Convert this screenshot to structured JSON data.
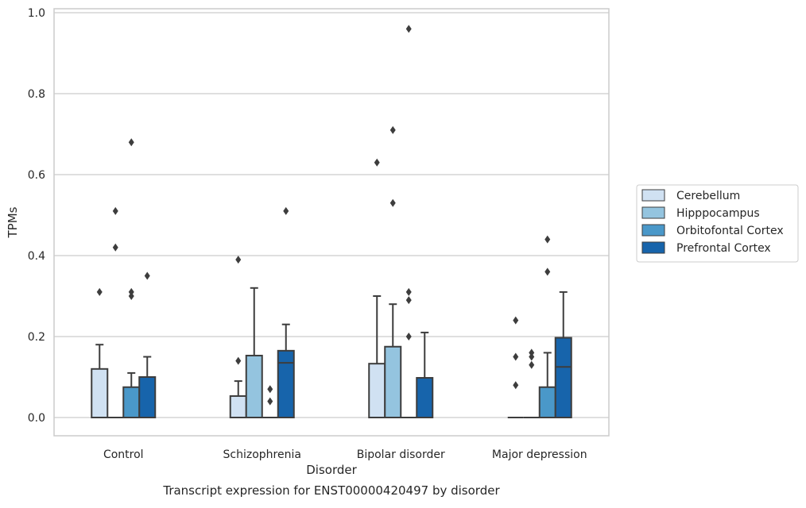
{
  "chart_data": {
    "type": "box",
    "xlabel": "Disorder",
    "ylabel": "TPMs",
    "caption": "Transcript expression for ENST00000420497 by disorder",
    "ylim": [
      -0.045,
      1.01
    ],
    "yticks": [
      "0.0",
      "0.2",
      "0.4",
      "0.6",
      "0.8",
      "1.0"
    ],
    "ytick_values": [
      0,
      0.2,
      0.4,
      0.6,
      0.8,
      1.0
    ],
    "grid": "horizontal",
    "legend_position": "right",
    "categories": [
      "Control",
      "Schizophrenia",
      "Bipolar disorder",
      "Major depression"
    ],
    "series": [
      {
        "name": "Cerebellum",
        "color": "#d0e1f2",
        "boxes": [
          {
            "q1": 0,
            "median": 0,
            "q3": 0.12,
            "whisker_low": 0,
            "whisker_high": 0.18,
            "outliers": [
              0.31
            ]
          },
          {
            "q1": 0,
            "median": 0,
            "q3": 0.053,
            "whisker_low": 0,
            "whisker_high": 0.09,
            "outliers": [
              0.14,
              0.39
            ]
          },
          {
            "q1": 0,
            "median": 0,
            "q3": 0.133,
            "whisker_low": 0,
            "whisker_high": 0.3,
            "outliers": [
              0.63
            ]
          },
          {
            "q1": 0,
            "median": 0,
            "q3": 0,
            "whisker_low": 0,
            "whisker_high": 0,
            "outliers": [
              0.08,
              0.15,
              0.24
            ]
          }
        ]
      },
      {
        "name": "Hipppocampus",
        "color": "#94c4df",
        "boxes": [
          {
            "q1": 0,
            "median": 0,
            "q3": 0,
            "whisker_low": 0,
            "whisker_high": 0,
            "outliers": [
              0.42,
              0.51
            ]
          },
          {
            "q1": 0,
            "median": 0,
            "q3": 0.153,
            "whisker_low": 0,
            "whisker_high": 0.32,
            "outliers": []
          },
          {
            "q1": 0,
            "median": 0,
            "q3": 0.175,
            "whisker_low": 0,
            "whisker_high": 0.28,
            "outliers": [
              0.53,
              0.71
            ]
          },
          {
            "q1": 0,
            "median": 0,
            "q3": 0,
            "whisker_low": 0,
            "whisker_high": 0,
            "outliers": [
              0.13,
              0.15,
              0.16
            ]
          }
        ]
      },
      {
        "name": "Orbitofontal Cortex",
        "color": "#4a98c9",
        "boxes": [
          {
            "q1": 0,
            "median": 0,
            "q3": 0.075,
            "whisker_low": 0,
            "whisker_high": 0.11,
            "outliers": [
              0.3,
              0.31,
              0.68
            ]
          },
          {
            "q1": 0,
            "median": 0,
            "q3": 0,
            "whisker_low": 0,
            "whisker_high": 0,
            "outliers": [
              0.04,
              0.07
            ]
          },
          {
            "q1": 0,
            "median": 0,
            "q3": 0,
            "whisker_low": 0,
            "whisker_high": 0,
            "outliers": [
              0.2,
              0.29,
              0.31,
              0.96
            ]
          },
          {
            "q1": 0,
            "median": 0,
            "q3": 0.075,
            "whisker_low": 0,
            "whisker_high": 0.16,
            "outliers": [
              0.36,
              0.44
            ]
          }
        ]
      },
      {
        "name": "Prefrontal Cortex",
        "color": "#1764ab",
        "boxes": [
          {
            "q1": 0,
            "median": 0,
            "q3": 0.1,
            "whisker_low": 0,
            "whisker_high": 0.15,
            "outliers": [
              0.35
            ]
          },
          {
            "q1": 0,
            "median": 0.135,
            "q3": 0.165,
            "whisker_low": 0,
            "whisker_high": 0.23,
            "outliers": [
              0.51
            ]
          },
          {
            "q1": 0,
            "median": 0,
            "q3": 0.098,
            "whisker_low": 0,
            "whisker_high": 0.21,
            "outliers": []
          },
          {
            "q1": 0,
            "median": 0.125,
            "q3": 0.197,
            "whisker_low": 0,
            "whisker_high": 0.31,
            "outliers": []
          }
        ]
      }
    ]
  }
}
